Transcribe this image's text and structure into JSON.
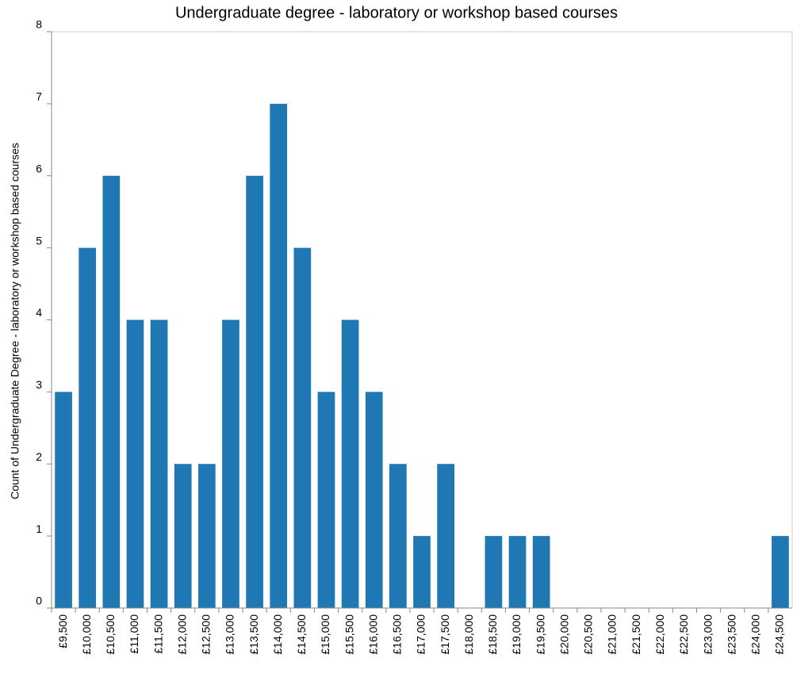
{
  "chart_data": {
    "type": "bar",
    "title": "Undergraduate degree - laboratory or workshop based courses",
    "y_label": "Count of Undergraduate Degree - laboratory or workshop based courses",
    "categories": [
      "£9,500",
      "£10,000",
      "£10,500",
      "£11,000",
      "£11,500",
      "£12,000",
      "£12,500",
      "£13,000",
      "£13,500",
      "£14,000",
      "£14,500",
      "£15,000",
      "£15,500",
      "£16,000",
      "£16,500",
      "£17,000",
      "£17,500",
      "£18,000",
      "£18,500",
      "£19,000",
      "£19,500",
      "£20,000",
      "£20,500",
      "£21,000",
      "£21,500",
      "£22,000",
      "£22,500",
      "£23,000",
      "£23,500",
      "£24,000",
      "£24,500"
    ],
    "values": [
      3,
      5,
      6,
      4,
      4,
      2,
      2,
      4,
      6,
      7,
      5,
      3,
      4,
      3,
      2,
      1,
      2,
      0,
      1,
      1,
      1,
      0,
      0,
      0,
      0,
      0,
      0,
      0,
      0,
      0,
      1
    ],
    "color": "#1f77b4",
    "ylim": [
      0,
      8
    ],
    "yticks": [
      0,
      1,
      2,
      3,
      4,
      5,
      6,
      7,
      8
    ],
    "grid": false
  }
}
